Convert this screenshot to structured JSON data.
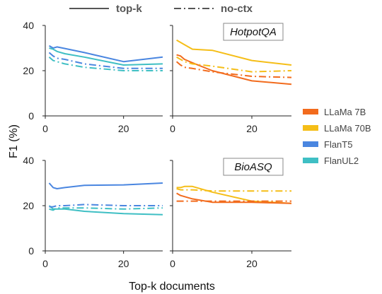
{
  "chart_data": {
    "type": "line",
    "xlabel": "Top-k documents",
    "ylabel": "F1 (%)",
    "xlim": [
      0,
      30
    ],
    "ylim": [
      0,
      40
    ],
    "xticks": [
      0,
      20
    ],
    "yticks": [
      0,
      20,
      40
    ],
    "grid": false,
    "style_legend": {
      "placement": "top",
      "items": [
        {
          "label": "top-k",
          "dash": "solid"
        },
        {
          "label": "no-ctx",
          "dash": "dashdot"
        }
      ]
    },
    "model_legend": {
      "placement": "right",
      "items": [
        {
          "label": "LLaMa 7B",
          "color": "#F26B1D"
        },
        {
          "label": "LLaMa 70B",
          "color": "#F5BE18"
        },
        {
          "label": "FlanT5",
          "color": "#4A86E0"
        },
        {
          "label": "FlanUL2",
          "color": "#3FBFC4"
        }
      ]
    },
    "panels": [
      {
        "title": "",
        "series": [
          {
            "model": "FlanT5",
            "style": "top-k",
            "color": "#4A86E0",
            "x": [
              1,
              2,
              3,
              5,
              10,
              20,
              30
            ],
            "y": [
              31,
              30,
              30.5,
              29.8,
              28,
              24,
              26
            ]
          },
          {
            "model": "FlanUL2",
            "style": "top-k",
            "color": "#3FBFC4",
            "x": [
              1,
              2,
              3,
              5,
              10,
              20,
              30
            ],
            "y": [
              30,
              29.5,
              28.5,
              27.5,
              26,
              22.5,
              23
            ]
          },
          {
            "model": "FlanT5",
            "style": "no-ctx",
            "color": "#4A86E0",
            "x": [
              1,
              2,
              3,
              5,
              10,
              20,
              30
            ],
            "y": [
              28,
              26.5,
              25.5,
              25,
              23,
              21,
              21
            ]
          },
          {
            "model": "FlanUL2",
            "style": "no-ctx",
            "color": "#3FBFC4",
            "x": [
              1,
              2,
              3,
              5,
              10,
              20,
              30
            ],
            "y": [
              26,
              24.5,
              24,
              23,
              21.5,
              20,
              20
            ]
          }
        ]
      },
      {
        "title": "HotpotQA",
        "series": [
          {
            "model": "LLaMa 70B",
            "style": "top-k",
            "color": "#F5BE18",
            "x": [
              1,
              2,
              3,
              5,
              10,
              20,
              30
            ],
            "y": [
              33.5,
              32.5,
              31.5,
              29.5,
              29,
              24.5,
              22.5
            ]
          },
          {
            "model": "LLaMa 7B",
            "style": "top-k",
            "color": "#F26B1D",
            "x": [
              1,
              2,
              3,
              5,
              10,
              20,
              30
            ],
            "y": [
              27,
              26.5,
              25,
              23.5,
              20,
              15.5,
              14
            ]
          },
          {
            "model": "LLaMa 70B",
            "style": "no-ctx",
            "color": "#F5BE18",
            "x": [
              1,
              2,
              3,
              5,
              10,
              20,
              30
            ],
            "y": [
              26,
              25,
              24,
              23,
              22,
              19.5,
              20
            ]
          },
          {
            "model": "LLaMa 7B",
            "style": "no-ctx",
            "color": "#F26B1D",
            "x": [
              1,
              2,
              3,
              5,
              10,
              20,
              30
            ],
            "y": [
              24,
              22.5,
              21.5,
              21,
              19.5,
              17.5,
              17
            ]
          }
        ]
      },
      {
        "title": "",
        "series": [
          {
            "model": "FlanT5",
            "style": "top-k",
            "color": "#4A86E0",
            "x": [
              1,
              2,
              3,
              5,
              10,
              20,
              30
            ],
            "y": [
              30,
              28,
              27.5,
              28,
              29,
              29.2,
              30
            ]
          },
          {
            "model": "FlanUL2",
            "style": "top-k",
            "color": "#3FBFC4",
            "x": [
              1,
              2,
              3,
              5,
              10,
              20,
              30
            ],
            "y": [
              20,
              18.5,
              18.5,
              18.5,
              17.5,
              16.5,
              16
            ]
          },
          {
            "model": "FlanT5",
            "style": "no-ctx",
            "color": "#4A86E0",
            "x": [
              1,
              2,
              3,
              5,
              10,
              20,
              30
            ],
            "y": [
              19.5,
              19.5,
              20,
              20,
              20.5,
              20,
              20
            ]
          },
          {
            "model": "FlanUL2",
            "style": "no-ctx",
            "color": "#3FBFC4",
            "x": [
              1,
              2,
              3,
              5,
              10,
              20,
              30
            ],
            "y": [
              18.5,
              18,
              19,
              19,
              19,
              18.5,
              19
            ]
          }
        ]
      },
      {
        "title": "BioASQ",
        "series": [
          {
            "model": "LLaMa 70B",
            "style": "top-k",
            "color": "#F5BE18",
            "x": [
              1,
              2,
              3,
              5,
              10,
              20,
              30
            ],
            "y": [
              28,
              28,
              28.5,
              28.5,
              26,
              22,
              21
            ]
          },
          {
            "model": "LLaMa 7B",
            "style": "top-k",
            "color": "#F26B1D",
            "x": [
              1,
              2,
              3,
              5,
              10,
              20,
              30
            ],
            "y": [
              25.5,
              24.5,
              24,
              23,
              21.5,
              21.5,
              21
            ]
          },
          {
            "model": "LLaMa 70B",
            "style": "no-ctx",
            "color": "#F5BE18",
            "x": [
              1,
              2,
              3,
              5,
              10,
              20,
              30
            ],
            "y": [
              27.5,
              27,
              27,
              27,
              26.5,
              26.5,
              26.5
            ]
          },
          {
            "model": "LLaMa 7B",
            "style": "no-ctx",
            "color": "#F26B1D",
            "x": [
              1,
              2,
              3,
              5,
              10,
              20,
              30
            ],
            "y": [
              22,
              22,
              22,
              22,
              22,
              22,
              22
            ]
          }
        ]
      }
    ]
  }
}
